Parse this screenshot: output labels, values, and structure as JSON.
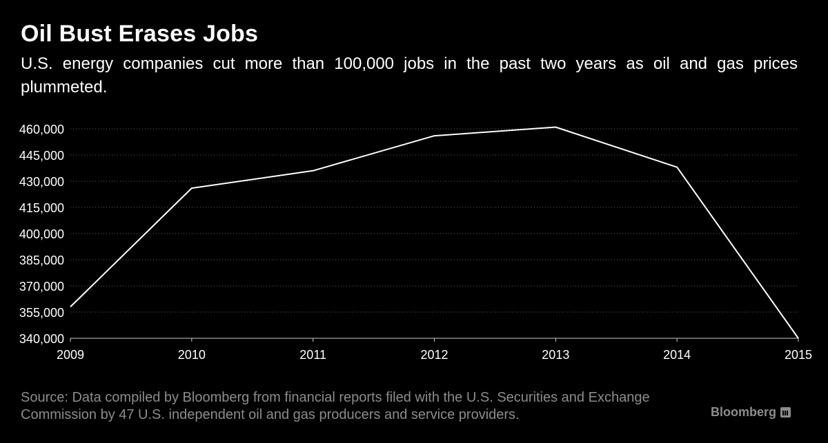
{
  "header": {
    "title": "Oil Bust Erases Jobs",
    "subtitle": "U.S. energy companies cut more than 100,000 jobs in the past two years as oil and gas prices plummeted."
  },
  "footer": {
    "source": "Source: Data compiled by Bloomberg from financial reports filed with the U.S. Securities and Exchange Commission by 47 U.S. independent oil and gas producers and service providers.",
    "brand": "Bloomberg"
  },
  "colors": {
    "background": "#000000",
    "line": "#ffffff",
    "text": "#ffffff",
    "muted": "#8c8c8c",
    "grid": "#666666"
  },
  "chart_data": {
    "type": "line",
    "title": "Oil Bust Erases Jobs",
    "x": [
      2009,
      2010,
      2011,
      2012,
      2013,
      2014,
      2015
    ],
    "x_tick_labels": [
      "2009",
      "2010",
      "2011",
      "2012",
      "2013",
      "2014",
      "2015"
    ],
    "series": [
      {
        "values": [
          358000,
          426000,
          436000,
          456000,
          461000,
          438000,
          340000
        ]
      }
    ],
    "ylim": [
      340000,
      460000
    ],
    "y_ticks": [
      340000,
      355000,
      370000,
      385000,
      400000,
      415000,
      430000,
      445000,
      460000
    ],
    "y_tick_labels": [
      "340,000",
      "355,000",
      "370,000",
      "385,000",
      "400,000",
      "415,000",
      "430,000",
      "445,000",
      "460,000"
    ],
    "xlabel": "",
    "ylabel": "",
    "grid": "horizontal dotted",
    "legend": "none"
  }
}
